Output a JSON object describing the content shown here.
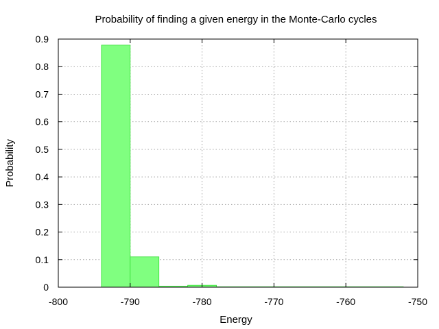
{
  "chart_data": {
    "type": "bar",
    "title": "Probability of finding a given energy in the Monte-Carlo cycles",
    "xlabel": "Energy",
    "ylabel": "Probability",
    "xlim": [
      -800,
      -750
    ],
    "ylim": [
      0,
      0.9
    ],
    "xticks": [
      -800,
      -790,
      -780,
      -770,
      -760,
      -750
    ],
    "yticks": [
      0,
      0.1,
      0.2,
      0.3,
      0.4,
      0.5,
      0.6,
      0.7,
      0.8,
      0.9
    ],
    "xtick_labels": [
      "-800",
      "-790",
      "-780",
      "-770",
      "-760",
      "-750"
    ],
    "ytick_labels": [
      "0",
      "0.1",
      "0.2",
      "0.3",
      "0.4",
      "0.5",
      "0.6",
      "0.7",
      "0.8",
      "0.9"
    ],
    "grid": true,
    "legend": "none",
    "bar_color": "#80ff80",
    "bar_edge_color": "#33dd33",
    "bins": [
      {
        "x_start": -794,
        "x_end": -790,
        "value": 0.878
      },
      {
        "x_start": -790,
        "x_end": -786,
        "value": 0.11
      },
      {
        "x_start": -786,
        "x_end": -782,
        "value": 0.004
      },
      {
        "x_start": -782,
        "x_end": -778,
        "value": 0.007
      },
      {
        "x_start": -778,
        "x_end": -774,
        "value": 0.0005
      },
      {
        "x_start": -774,
        "x_end": -770,
        "value": 0.0003
      },
      {
        "x_start": -770,
        "x_end": -766,
        "value": 0.0002
      },
      {
        "x_start": -766,
        "x_end": -762,
        "value": 0.0002
      },
      {
        "x_start": -762,
        "x_end": -758,
        "value": 0.0002
      },
      {
        "x_start": -758,
        "x_end": -754,
        "value": 0.0002
      },
      {
        "x_start": -754,
        "x_end": -752,
        "value": 0.0002
      }
    ]
  }
}
